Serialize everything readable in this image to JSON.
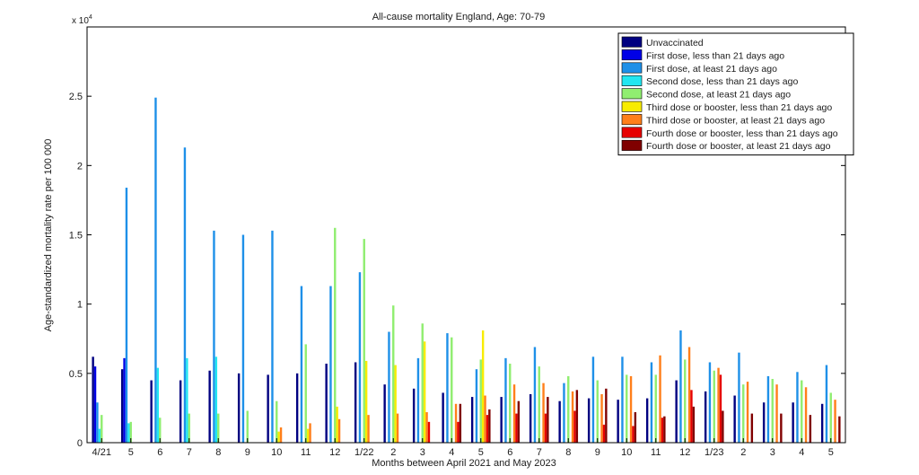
{
  "chart_data": {
    "type": "bar",
    "title": "All-cause mortality England, Age: 70-79",
    "xlabel": "Months between April 2021 and May 2023",
    "ylabel": "Age-standardized mortality rate per 100 000",
    "y_multiplier_label": "x 10",
    "y_multiplier_exp": "4",
    "ylim": [
      0,
      30000
    ],
    "yticks": [
      0,
      5000,
      10000,
      15000,
      20000,
      25000
    ],
    "ytick_labels": [
      "0",
      "0.5",
      "1",
      "1.5",
      "2",
      "2.5"
    ],
    "grid": false,
    "legend_position": "top-right",
    "categories": [
      "4/21",
      "5",
      "6",
      "7",
      "8",
      "9",
      "10",
      "11",
      "12",
      "1/22",
      "2",
      "3",
      "4",
      "5",
      "6",
      "7",
      "8",
      "9",
      "10",
      "11",
      "12",
      "1/23",
      "2",
      "3",
      "4",
      "5"
    ],
    "series": [
      {
        "name": "Unvaccinated",
        "color": "#000080",
        "values": [
          6200,
          5300,
          4500,
          4500,
          5200,
          5000,
          4900,
          5000,
          5700,
          5800,
          4200,
          3900,
          3600,
          3300,
          3300,
          3500,
          3000,
          3200,
          3100,
          3200,
          4500,
          3700,
          3400,
          2900,
          2900,
          2800
        ]
      },
      {
        "name": "First dose, less than 21 days ago",
        "color": "#0000e6",
        "values": [
          5500,
          6100,
          null,
          null,
          null,
          null,
          null,
          null,
          null,
          null,
          null,
          null,
          null,
          null,
          null,
          null,
          null,
          null,
          null,
          null,
          null,
          null,
          null,
          null,
          null,
          null
        ]
      },
      {
        "name": "First dose, at least 21 days ago",
        "color": "#1e90e8",
        "values": [
          2900,
          18400,
          24900,
          21300,
          15300,
          15000,
          15300,
          11300,
          11300,
          12300,
          8000,
          6100,
          7900,
          5300,
          6100,
          6900,
          4300,
          6200,
          6200,
          5800,
          8100,
          5800,
          6500,
          4800,
          5100,
          5600
        ]
      },
      {
        "name": "Second dose, less than 21 days ago",
        "color": "#22e6f0",
        "values": [
          1000,
          1400,
          5400,
          6100,
          6200,
          null,
          null,
          null,
          null,
          null,
          null,
          null,
          null,
          null,
          null,
          null,
          null,
          null,
          null,
          null,
          null,
          null,
          null,
          null,
          null,
          null
        ]
      },
      {
        "name": "Second dose, at least 21 days ago",
        "color": "#90ee70",
        "values": [
          2000,
          1500,
          1800,
          2100,
          2100,
          2300,
          3000,
          7100,
          15500,
          14700,
          9900,
          8600,
          7600,
          6000,
          5700,
          5500,
          4800,
          4500,
          4900,
          4900,
          6000,
          5200,
          4200,
          4600,
          4500,
          3600
        ]
      },
      {
        "name": "Third dose or booster, less than 21 days ago",
        "color": "#f8ec00",
        "values": [
          null,
          null,
          null,
          null,
          null,
          null,
          800,
          1000,
          2600,
          5900,
          5600,
          7300,
          null,
          8100,
          null,
          null,
          null,
          null,
          null,
          null,
          null,
          null,
          null,
          null,
          null,
          null
        ]
      },
      {
        "name": "Third dose or booster, at least 21 days ago",
        "color": "#ff7f1a",
        "values": [
          null,
          null,
          null,
          null,
          null,
          null,
          1100,
          1400,
          1700,
          2000,
          2100,
          2200,
          2800,
          3400,
          4200,
          4300,
          3700,
          3500,
          4800,
          6300,
          6900,
          5400,
          4400,
          4200,
          4000,
          3100
        ]
      },
      {
        "name": "Fourth dose or booster, less than 21 days ago",
        "color": "#e60000",
        "values": [
          null,
          null,
          null,
          null,
          null,
          null,
          null,
          null,
          null,
          null,
          null,
          1500,
          1500,
          2000,
          2100,
          2100,
          2300,
          1300,
          1200,
          1800,
          3800,
          4900,
          null,
          null,
          null,
          null
        ]
      },
      {
        "name": "Fourth dose or booster, at least 21 days ago",
        "color": "#800000",
        "values": [
          null,
          null,
          null,
          null,
          null,
          null,
          null,
          null,
          null,
          null,
          null,
          null,
          2800,
          2400,
          3000,
          3300,
          3800,
          3900,
          2200,
          1900,
          2600,
          2300,
          2100,
          2100,
          2000,
          1900
        ]
      }
    ]
  }
}
